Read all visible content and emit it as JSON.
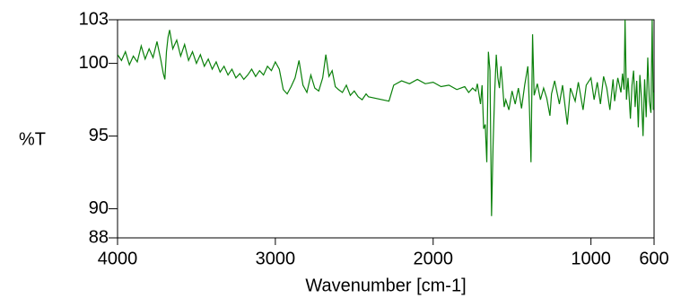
{
  "chart_data": {
    "type": "line",
    "xlabel": "Wavenumber [cm-1]",
    "ylabel": "%T",
    "xlim": [
      4000,
      600
    ],
    "ylim": [
      88,
      103
    ],
    "xticks": [
      4000,
      3000,
      2000,
      1000,
      600
    ],
    "yticks": [
      103,
      100,
      95,
      90,
      88
    ],
    "series": [
      {
        "color": "#0a800a",
        "x": [
          4000,
          3975,
          3950,
          3925,
          3900,
          3875,
          3850,
          3825,
          3800,
          3775,
          3750,
          3725,
          3710,
          3700,
          3690,
          3680,
          3670,
          3650,
          3625,
          3600,
          3575,
          3550,
          3525,
          3500,
          3475,
          3450,
          3425,
          3400,
          3375,
          3350,
          3325,
          3300,
          3275,
          3250,
          3225,
          3200,
          3175,
          3150,
          3125,
          3100,
          3075,
          3050,
          3025,
          3000,
          2975,
          2950,
          2925,
          2900,
          2875,
          2850,
          2825,
          2800,
          2775,
          2750,
          2725,
          2700,
          2680,
          2660,
          2640,
          2620,
          2600,
          2575,
          2550,
          2525,
          2500,
          2475,
          2450,
          2425,
          2410,
          2280,
          2250,
          2200,
          2150,
          2100,
          2050,
          2000,
          1950,
          1900,
          1850,
          1800,
          1775,
          1750,
          1730,
          1720,
          1700,
          1690,
          1680,
          1670,
          1660,
          1650,
          1640,
          1630,
          1620,
          1610,
          1600,
          1590,
          1580,
          1570,
          1560,
          1550,
          1540,
          1520,
          1500,
          1480,
          1460,
          1440,
          1420,
          1400,
          1390,
          1380,
          1370,
          1360,
          1340,
          1320,
          1300,
          1280,
          1260,
          1250,
          1230,
          1200,
          1180,
          1150,
          1130,
          1100,
          1080,
          1050,
          1030,
          1000,
          980,
          960,
          940,
          920,
          900,
          880,
          860,
          850,
          830,
          810,
          800,
          790,
          784,
          775,
          765,
          750,
          740,
          730,
          720,
          710,
          700,
          690,
          680,
          670,
          660,
          650,
          640,
          630,
          620,
          612,
          605,
          600
        ],
        "values": [
          100.6,
          100.2,
          100.8,
          99.9,
          100.5,
          100.1,
          101.2,
          100.3,
          101.0,
          100.4,
          101.5,
          100.2,
          99.3,
          98.9,
          100.8,
          101.8,
          102.3,
          101.0,
          101.6,
          100.5,
          101.3,
          100.2,
          100.8,
          100.0,
          100.6,
          99.8,
          100.3,
          99.6,
          100.1,
          99.4,
          99.8,
          99.2,
          99.6,
          99.0,
          99.3,
          98.9,
          99.2,
          99.6,
          99.1,
          99.5,
          99.2,
          99.8,
          99.5,
          100.1,
          99.6,
          98.2,
          97.9,
          98.4,
          99.0,
          100.2,
          98.5,
          98.0,
          99.2,
          98.3,
          98.1,
          99.0,
          100.6,
          99.1,
          99.5,
          98.4,
          98.2,
          98.0,
          98.5,
          97.8,
          98.1,
          97.7,
          97.5,
          97.9,
          97.7,
          97.4,
          98.5,
          98.8,
          98.6,
          98.9,
          98.6,
          98.7,
          98.4,
          98.5,
          98.2,
          98.4,
          98.0,
          98.3,
          98.1,
          98.6,
          97.2,
          98.5,
          95.5,
          95.8,
          93.2,
          100.8,
          99.5,
          89.5,
          94.5,
          98.0,
          100.6,
          99.0,
          98.3,
          99.8,
          98.5,
          97.0,
          97.5,
          96.8,
          98.1,
          97.2,
          98.3,
          96.9,
          98.5,
          99.8,
          97.0,
          93.2,
          102.0,
          97.8,
          98.6,
          97.5,
          98.3,
          97.6,
          96.4,
          97.9,
          98.8,
          97.2,
          98.5,
          95.8,
          98.3,
          97.4,
          98.7,
          96.8,
          98.5,
          99.0,
          97.5,
          98.7,
          97.2,
          99.1,
          98.3,
          96.8,
          98.9,
          97.4,
          99.0,
          98.0,
          99.3,
          98.2,
          103,
          97.5,
          99.0,
          96.2,
          98.5,
          99.5,
          97.0,
          98.8,
          95.6,
          99.2,
          97.6,
          95.0,
          98.9,
          96.3,
          100.4,
          97.4,
          96.6,
          103,
          96.8,
          98.0
        ]
      }
    ]
  }
}
